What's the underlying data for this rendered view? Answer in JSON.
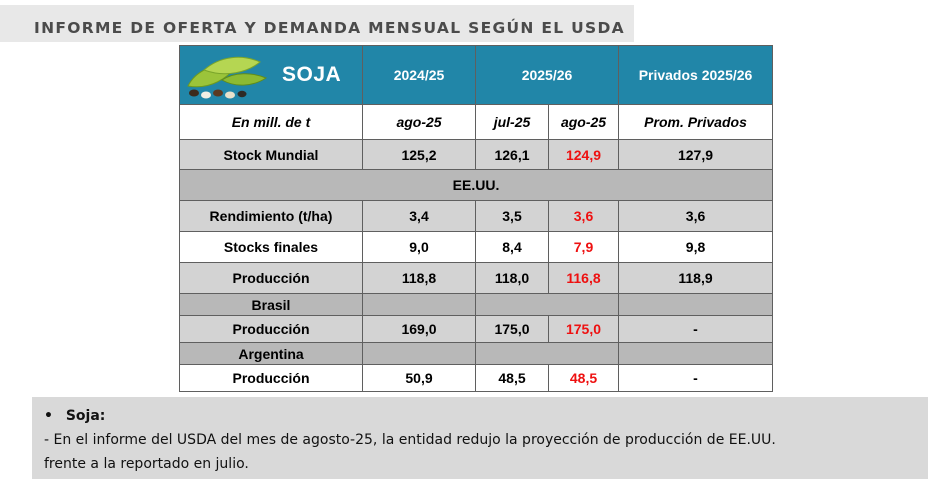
{
  "header": {
    "title": "INFORME DE OFERTA Y DEMANDA MENSUAL SEGÚN EL USDA"
  },
  "table": {
    "product": "SOJA",
    "image": "soybean-pods-icon",
    "col_groups": [
      "2024/25",
      "2025/26",
      "Privados 2025/26"
    ],
    "subheader": {
      "unit": "En mill. de t",
      "c1": "ago-25",
      "c2": "jul-25",
      "c3": "ago-25",
      "c4": "Prom. Privados"
    },
    "rows": {
      "stock_mundial": {
        "label": "Stock Mundial",
        "v1": "125,2",
        "v2": "126,1",
        "v3": "124,9",
        "v4": "127,9"
      },
      "section_usa": "EE.UU.",
      "rendimiento": {
        "label": "Rendimiento (t/ha)",
        "v1": "3,4",
        "v2": "3,5",
        "v3": "3,6",
        "v4": "3,6"
      },
      "stocks_finales": {
        "label": "Stocks finales",
        "v1": "9,0",
        "v2": "8,4",
        "v3": "7,9",
        "v4": "9,8"
      },
      "produccion_usa": {
        "label": "Producción",
        "v1": "118,8",
        "v2": "118,0",
        "v3": "116,8",
        "v4": "118,9"
      },
      "section_brasil": "Brasil",
      "produccion_brasil": {
        "label": "Producción",
        "v1": "169,0",
        "v2": "175,0",
        "v3": "175,0",
        "v4": "-"
      },
      "section_argentina": "Argentina",
      "produccion_argentina": {
        "label": "Producción",
        "v1": "50,9",
        "v2": "48,5",
        "v3": "48,5",
        "v4": "-"
      }
    }
  },
  "note": {
    "bullet": "•",
    "heading": "Soja:",
    "line1": "- En el informe del USDA del mes de agosto-25, la entidad redujo la proyección de producción de EE.UU.",
    "line2": "frente a la reportado en julio."
  },
  "colors": {
    "header_blue": "#2186a8",
    "highlight_red": "#ee1010",
    "row_grey": "#d3d3d3",
    "section_grey": "#b8b8b8"
  }
}
